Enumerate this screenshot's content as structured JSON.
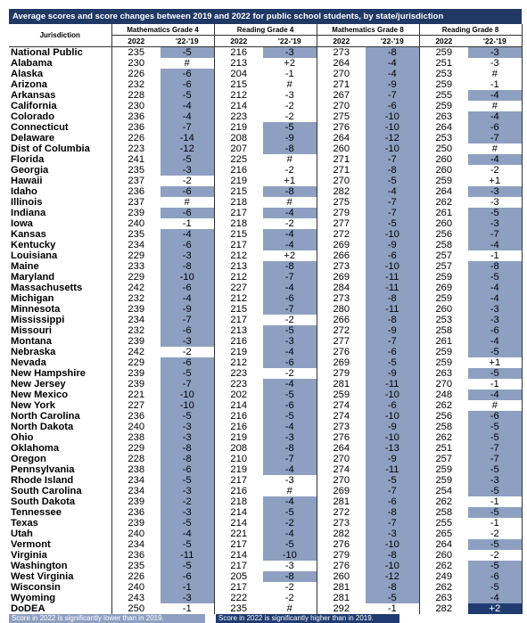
{
  "title": "Average scores and score changes between 2019 and 2022 for public school students, by state/jurisdiction",
  "header": {
    "jurisdiction": "Jurisdiction",
    "groups": [
      "Mathematics Grade 4",
      "Reading Grade 4",
      "Mathematics Grade 8",
      "Reading Grade 8"
    ],
    "sub": [
      "2022",
      "'22-'19"
    ]
  },
  "rows": [
    {
      "name": "National Public",
      "v": [
        "235",
        "-5",
        "216",
        "-3",
        "273",
        "-8",
        "259",
        "-3"
      ],
      "h": [
        1,
        3,
        5,
        7
      ]
    },
    {
      "name": "Alabama",
      "v": [
        "230",
        "#",
        "213",
        "+2",
        "264",
        "-4",
        "251",
        "-3"
      ],
      "h": [
        5
      ]
    },
    {
      "name": "Alaska",
      "v": [
        "226",
        "-6",
        "204",
        "-1",
        "270",
        "-4",
        "253",
        "#"
      ],
      "h": [
        1,
        5
      ]
    },
    {
      "name": "Arizona",
      "v": [
        "232",
        "-6",
        "215",
        "#",
        "271",
        "-9",
        "259",
        "-1"
      ],
      "h": [
        1,
        5
      ]
    },
    {
      "name": "Arkansas",
      "v": [
        "228",
        "-5",
        "212",
        "-3",
        "267",
        "-7",
        "255",
        "-4"
      ],
      "h": [
        1,
        5,
        7
      ]
    },
    {
      "name": "California",
      "v": [
        "230",
        "-4",
        "214",
        "-2",
        "270",
        "-6",
        "259",
        "#"
      ],
      "h": [
        1,
        5
      ]
    },
    {
      "name": "Colorado",
      "v": [
        "236",
        "-4",
        "223",
        "-2",
        "275",
        "-10",
        "263",
        "-4"
      ],
      "h": [
        1,
        5,
        7
      ]
    },
    {
      "name": "Connecticut",
      "v": [
        "236",
        "-7",
        "219",
        "-5",
        "276",
        "-10",
        "264",
        "-6"
      ],
      "h": [
        1,
        3,
        5,
        7
      ]
    },
    {
      "name": "Delaware",
      "v": [
        "226",
        "-14",
        "208",
        "-9",
        "264",
        "-12",
        "253",
        "-7"
      ],
      "h": [
        1,
        3,
        5,
        7
      ]
    },
    {
      "name": "Dist of Columbia",
      "v": [
        "223",
        "-12",
        "207",
        "-8",
        "260",
        "-10",
        "250",
        "#"
      ],
      "h": [
        1,
        3,
        5
      ]
    },
    {
      "name": "Florida",
      "v": [
        "241",
        "-5",
        "225",
        "#",
        "271",
        "-7",
        "260",
        "-4"
      ],
      "h": [
        1,
        5,
        7
      ]
    },
    {
      "name": "Georgia",
      "v": [
        "235",
        "-3",
        "216",
        "-2",
        "271",
        "-8",
        "260",
        "-2"
      ],
      "h": [
        1,
        5
      ]
    },
    {
      "name": "Hawaii",
      "v": [
        "237",
        "-2",
        "219",
        "+1",
        "270",
        "-5",
        "259",
        "+1"
      ],
      "h": [
        5
      ]
    },
    {
      "name": "Idaho",
      "v": [
        "236",
        "-6",
        "215",
        "-8",
        "282",
        "-4",
        "264",
        "-3"
      ],
      "h": [
        1,
        3,
        5,
        7
      ]
    },
    {
      "name": "Illinois",
      "v": [
        "237",
        "#",
        "218",
        "#",
        "275",
        "-7",
        "262",
        "-3"
      ],
      "h": [
        5
      ]
    },
    {
      "name": "Indiana",
      "v": [
        "239",
        "-6",
        "217",
        "-4",
        "279",
        "-7",
        "261",
        "-5"
      ],
      "h": [
        1,
        3,
        5,
        7
      ]
    },
    {
      "name": "Iowa",
      "v": [
        "240",
        "-1",
        "218",
        "-2",
        "277",
        "-5",
        "260",
        "-3"
      ],
      "h": [
        5,
        7
      ]
    },
    {
      "name": "Kansas",
      "v": [
        "235",
        "-4",
        "215",
        "-4",
        "272",
        "-10",
        "256",
        "-7"
      ],
      "h": [
        1,
        3,
        5,
        7
      ]
    },
    {
      "name": "Kentucky",
      "v": [
        "234",
        "-6",
        "217",
        "-4",
        "269",
        "-9",
        "258",
        "-4"
      ],
      "h": [
        1,
        3,
        5,
        7
      ]
    },
    {
      "name": "Louisiana",
      "v": [
        "229",
        "-3",
        "212",
        "+2",
        "266",
        "-6",
        "257",
        "-1"
      ],
      "h": [
        1,
        5
      ]
    },
    {
      "name": "Maine",
      "v": [
        "233",
        "-8",
        "213",
        "-8",
        "273",
        "-10",
        "257",
        "-8"
      ],
      "h": [
        1,
        3,
        5,
        7
      ]
    },
    {
      "name": "Maryland",
      "v": [
        "229",
        "-10",
        "212",
        "-7",
        "269",
        "-11",
        "259",
        "-5"
      ],
      "h": [
        1,
        3,
        5,
        7
      ]
    },
    {
      "name": "Massachusetts",
      "v": [
        "242",
        "-6",
        "227",
        "-4",
        "284",
        "-11",
        "269",
        "-4"
      ],
      "h": [
        1,
        3,
        5,
        7
      ]
    },
    {
      "name": "Michigan",
      "v": [
        "232",
        "-4",
        "212",
        "-6",
        "273",
        "-8",
        "259",
        "-4"
      ],
      "h": [
        1,
        3,
        5,
        7
      ]
    },
    {
      "name": "Minnesota",
      "v": [
        "239",
        "-9",
        "215",
        "-7",
        "280",
        "-11",
        "260",
        "-3"
      ],
      "h": [
        1,
        3,
        5,
        7
      ]
    },
    {
      "name": "Mississippi",
      "v": [
        "234",
        "-7",
        "217",
        "-2",
        "266",
        "-8",
        "253",
        "-3"
      ],
      "h": [
        1,
        5,
        7
      ]
    },
    {
      "name": "Missouri",
      "v": [
        "232",
        "-6",
        "213",
        "-5",
        "272",
        "-9",
        "258",
        "-6"
      ],
      "h": [
        1,
        3,
        5,
        7
      ]
    },
    {
      "name": "Montana",
      "v": [
        "239",
        "-3",
        "216",
        "-3",
        "277",
        "-7",
        "261",
        "-4"
      ],
      "h": [
        1,
        3,
        5,
        7
      ]
    },
    {
      "name": "Nebraska",
      "v": [
        "242",
        "-2",
        "219",
        "-4",
        "276",
        "-6",
        "259",
        "-5"
      ],
      "h": [
        3,
        5,
        7
      ]
    },
    {
      "name": "Nevada",
      "v": [
        "229",
        "-6",
        "212",
        "-6",
        "269",
        "-5",
        "259",
        "+1"
      ],
      "h": [
        1,
        3,
        5
      ]
    },
    {
      "name": "New Hampshire",
      "v": [
        "239",
        "-5",
        "223",
        "-2",
        "279",
        "-9",
        "263",
        "-5"
      ],
      "h": [
        1,
        5,
        7
      ]
    },
    {
      "name": "New Jersey",
      "v": [
        "239",
        "-7",
        "223",
        "-4",
        "281",
        "-11",
        "270",
        "-1"
      ],
      "h": [
        1,
        3,
        5
      ]
    },
    {
      "name": "New Mexico",
      "v": [
        "221",
        "-10",
        "202",
        "-5",
        "259",
        "-10",
        "248",
        "-4"
      ],
      "h": [
        1,
        3,
        5,
        7
      ]
    },
    {
      "name": "New York",
      "v": [
        "227",
        "-10",
        "214",
        "-6",
        "274",
        "-6",
        "262",
        "#"
      ],
      "h": [
        1,
        3,
        5
      ]
    },
    {
      "name": "North Carolina",
      "v": [
        "236",
        "-5",
        "216",
        "-5",
        "274",
        "-10",
        "256",
        "-6"
      ],
      "h": [
        1,
        3,
        5,
        7
      ]
    },
    {
      "name": "North Dakota",
      "v": [
        "240",
        "-3",
        "216",
        "-4",
        "273",
        "-9",
        "258",
        "-5"
      ],
      "h": [
        1,
        3,
        5,
        7
      ]
    },
    {
      "name": "Ohio",
      "v": [
        "238",
        "-3",
        "219",
        "-3",
        "276",
        "-10",
        "262",
        "-5"
      ],
      "h": [
        1,
        3,
        5,
        7
      ]
    },
    {
      "name": "Oklahoma",
      "v": [
        "229",
        "-8",
        "208",
        "-8",
        "264",
        "-13",
        "251",
        "-7"
      ],
      "h": [
        1,
        3,
        5,
        7
      ]
    },
    {
      "name": "Oregon",
      "v": [
        "228",
        "-8",
        "210",
        "-7",
        "270",
        "-9",
        "257",
        "-7"
      ],
      "h": [
        1,
        3,
        5,
        7
      ]
    },
    {
      "name": "Pennsylvania",
      "v": [
        "238",
        "-6",
        "219",
        "-4",
        "274",
        "-11",
        "259",
        "-5"
      ],
      "h": [
        1,
        3,
        5,
        7
      ]
    },
    {
      "name": "Rhode Island",
      "v": [
        "234",
        "-5",
        "217",
        "-3",
        "270",
        "-5",
        "259",
        "-3"
      ],
      "h": [
        1,
        5,
        7
      ]
    },
    {
      "name": "South Carolina",
      "v": [
        "234",
        "-3",
        "216",
        "#",
        "269",
        "-7",
        "254",
        "-5"
      ],
      "h": [
        1,
        5,
        7
      ]
    },
    {
      "name": "South Dakota",
      "v": [
        "239",
        "-2",
        "218",
        "-4",
        "281",
        "-6",
        "262",
        "-1"
      ],
      "h": [
        1,
        3,
        5
      ]
    },
    {
      "name": "Tennessee",
      "v": [
        "236",
        "-3",
        "214",
        "-5",
        "272",
        "-8",
        "258",
        "-5"
      ],
      "h": [
        1,
        3,
        5,
        7
      ]
    },
    {
      "name": "Texas",
      "v": [
        "239",
        "-5",
        "214",
        "-2",
        "273",
        "-7",
        "255",
        "-1"
      ],
      "h": [
        1,
        3,
        5
      ]
    },
    {
      "name": "Utah",
      "v": [
        "240",
        "-4",
        "221",
        "-4",
        "282",
        "-3",
        "265",
        "-2"
      ],
      "h": [
        1,
        3,
        5
      ]
    },
    {
      "name": "Vermont",
      "v": [
        "234",
        "-5",
        "217",
        "-5",
        "276",
        "-10",
        "264",
        "-5"
      ],
      "h": [
        1,
        3,
        5,
        7
      ]
    },
    {
      "name": "Virginia",
      "v": [
        "236",
        "-11",
        "214",
        "-10",
        "279",
        "-8",
        "260",
        "-2"
      ],
      "h": [
        1,
        3,
        5
      ]
    },
    {
      "name": "Washington",
      "v": [
        "235",
        "-5",
        "217",
        "-3",
        "276",
        "-10",
        "262",
        "-5"
      ],
      "h": [
        1,
        5,
        7
      ]
    },
    {
      "name": "West Virginia",
      "v": [
        "226",
        "-6",
        "205",
        "-8",
        "260",
        "-12",
        "249",
        "-6"
      ],
      "h": [
        1,
        3,
        5,
        7
      ]
    },
    {
      "name": "Wisconsin",
      "v": [
        "240",
        "-1",
        "217",
        "-2",
        "281",
        "-8",
        "262",
        "-5"
      ],
      "h": [
        1,
        5,
        7
      ]
    },
    {
      "name": "Wyoming",
      "v": [
        "243",
        "-3",
        "222",
        "-2",
        "281",
        "-5",
        "263",
        "-4"
      ],
      "h": [
        1,
        5,
        7
      ]
    },
    {
      "name": "DoDEA",
      "v": [
        "250",
        "-1",
        "235",
        "#",
        "292",
        "-1",
        "282",
        "+2"
      ],
      "h": [],
      "up": [
        7
      ]
    }
  ],
  "legend": {
    "low": "Score in 2022 is significantly lower than in 2019.",
    "high": "Score in 2022 is significantly higher than in 2019."
  },
  "colors": {
    "header_bg": "#1f3864",
    "significant_lower": "#8ea0c1",
    "significant_higher": "#1f3b6f"
  }
}
